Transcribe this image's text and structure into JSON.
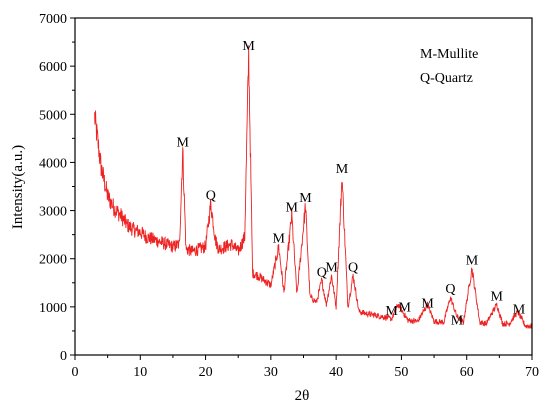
{
  "chart_data": {
    "type": "line",
    "title": "",
    "xlabel": "2θ",
    "ylabel": "Intensity(a.u.)",
    "xlim": [
      0,
      70
    ],
    "ylim": [
      0,
      7000
    ],
    "xticks": [
      0,
      10,
      20,
      30,
      40,
      50,
      60,
      70
    ],
    "yticks": [
      0,
      1000,
      2000,
      3000,
      4000,
      5000,
      6000,
      7000
    ],
    "grid": false,
    "legend": {
      "placement": "top-right",
      "entries": [
        "M-Mullite",
        "Q-Quartz"
      ]
    },
    "series": [
      {
        "color": "#ee2222",
        "x": [
          3.0,
          4,
          5,
          6,
          7,
          8,
          9,
          10,
          11,
          12,
          13,
          14,
          15,
          16,
          16.5,
          17,
          18,
          19,
          20,
          20.8,
          21.5,
          22,
          23,
          24,
          25,
          26.0,
          26.6,
          27.2,
          28,
          29,
          30,
          31.2,
          32,
          33.2,
          34,
          35.3,
          36,
          37,
          37.8,
          38.5,
          39.3,
          40,
          40.9,
          41.8,
          42.6,
          43.5,
          45,
          47,
          48.5,
          49.5,
          51,
          52.5,
          54,
          55,
          56.5,
          57.5,
          58.5,
          59.5,
          60.8,
          62,
          63,
          64.6,
          65.5,
          66.5,
          67.8,
          69,
          70
        ],
        "y": [
          4950,
          3900,
          3300,
          3050,
          2900,
          2700,
          2600,
          2550,
          2450,
          2400,
          2350,
          2300,
          2250,
          2300,
          4250,
          2200,
          2150,
          2200,
          2250,
          3150,
          2400,
          2200,
          2250,
          2300,
          2150,
          2450,
          6250,
          1700,
          1650,
          1550,
          1450,
          2250,
          1300,
          2900,
          1250,
          3100,
          1200,
          1100,
          1550,
          1050,
          1650,
          1000,
          3700,
          1000,
          1650,
          900,
          850,
          800,
          750,
          1050,
          720,
          700,
          1050,
          700,
          680,
          1200,
          800,
          680,
          1800,
          680,
          650,
          1050,
          650,
          650,
          900,
          600,
          600
        ]
      }
    ],
    "peak_labels": [
      {
        "text": "M",
        "x": 16.5,
        "y": 4250
      },
      {
        "text": "Q",
        "x": 20.8,
        "y": 3150
      },
      {
        "text": "M",
        "x": 26.6,
        "y": 6250
      },
      {
        "text": "M",
        "x": 31.2,
        "y": 2250
      },
      {
        "text": "M",
        "x": 33.2,
        "y": 2900
      },
      {
        "text": "M",
        "x": 35.3,
        "y": 3100
      },
      {
        "text": "Q",
        "x": 37.8,
        "y": 1550
      },
      {
        "text": "M",
        "x": 39.3,
        "y": 1650
      },
      {
        "text": "M",
        "x": 40.9,
        "y": 3700
      },
      {
        "text": "Q",
        "x": 42.6,
        "y": 1650
      },
      {
        "text": "M",
        "x": 48.5,
        "y": 750
      },
      {
        "text": "M",
        "x": 50.5,
        "y": 820
      },
      {
        "text": "M",
        "x": 54.0,
        "y": 900
      },
      {
        "text": "Q",
        "x": 57.5,
        "y": 1200
      },
      {
        "text": "M",
        "x": 58.5,
        "y": 550
      },
      {
        "text": "M",
        "x": 60.8,
        "y": 1800
      },
      {
        "text": "M",
        "x": 64.6,
        "y": 1050
      },
      {
        "text": "M",
        "x": 68.0,
        "y": 780
      }
    ]
  }
}
